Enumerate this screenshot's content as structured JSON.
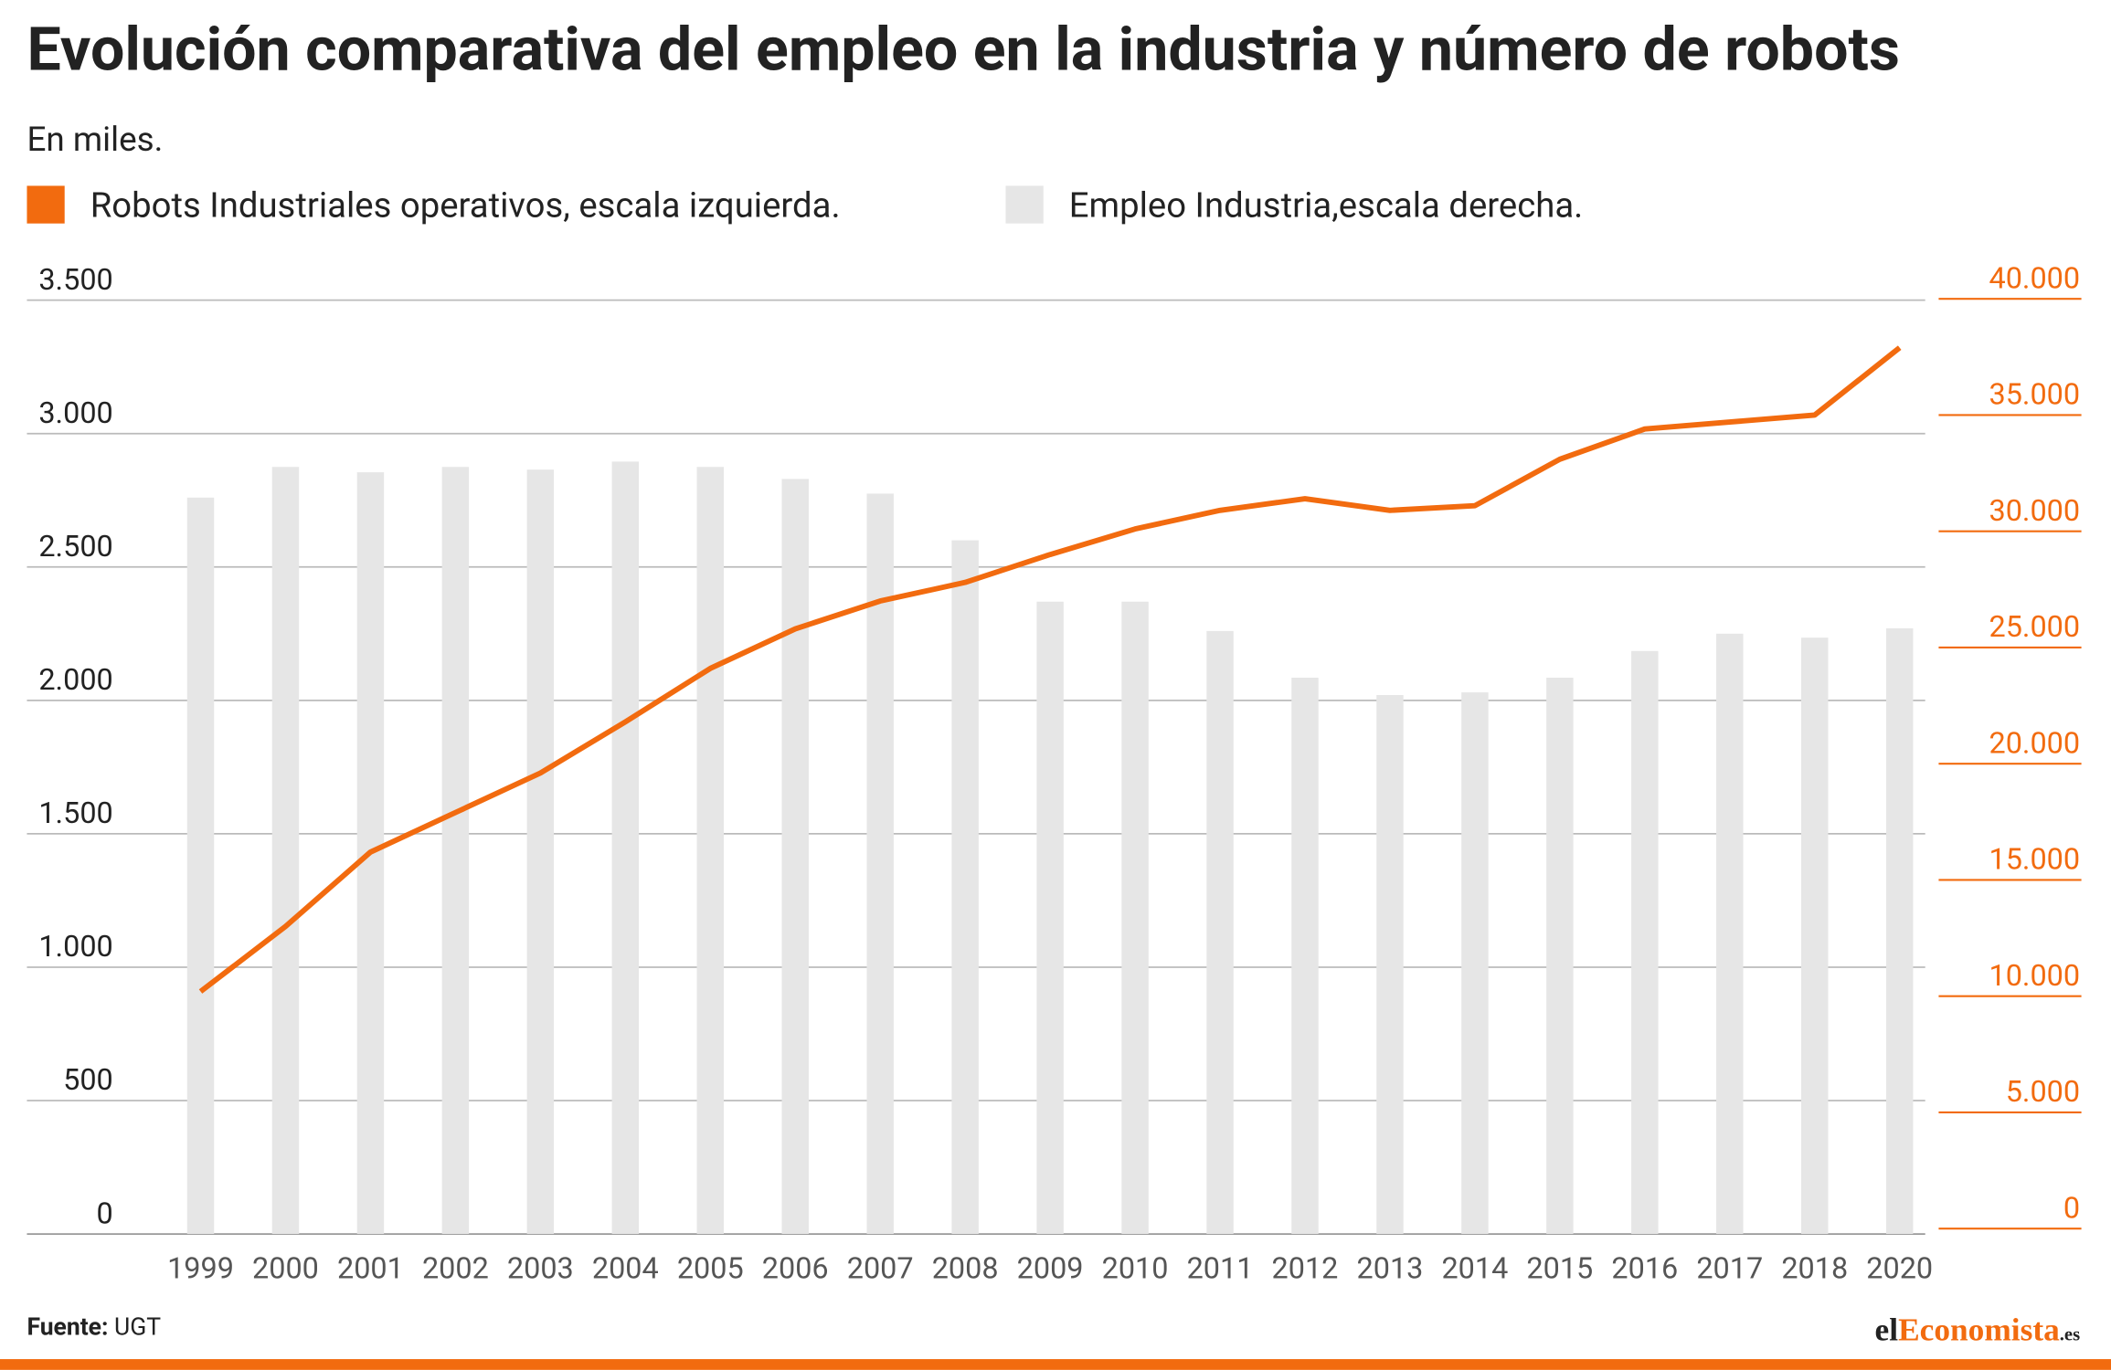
{
  "chart_data": {
    "type": "bar_line",
    "title": "Evolución comparativa del empleo en la industria y número de robots",
    "subtitle": "En miles.",
    "categories": [
      "1999",
      "2000",
      "2001",
      "2002",
      "2003",
      "2004",
      "2005",
      "2006",
      "2007",
      "2008",
      "2009",
      "2010",
      "2011",
      "2012",
      "2013",
      "2014",
      "2015",
      "2016",
      "2017",
      "2018",
      "2020"
    ],
    "series": [
      {
        "name": "Robots Industriales operativos, escala izquierda.",
        "color": "#f26b0f",
        "type": "line",
        "axis": "y2",
        "values": [
          10200,
          13000,
          16200,
          17900,
          19600,
          21800,
          24100,
          25800,
          27000,
          27800,
          29000,
          30100,
          30900,
          31400,
          30900,
          31100,
          33100,
          34400,
          34700,
          35000,
          37900
        ]
      },
      {
        "name": "Empleo Industria,escala derecha.",
        "color": "#e6e6e6",
        "type": "bar",
        "values": [
          2760,
          2875,
          2855,
          2875,
          2865,
          2895,
          2875,
          2830,
          2775,
          2600,
          2370,
          2370,
          2260,
          2085,
          2020,
          2030,
          2085,
          2185,
          2250,
          2235,
          2270
        ]
      }
    ],
    "ylim": [
      0,
      3500
    ],
    "yticks": [
      0,
      500,
      {
        "value": 1000,
        "label": "1.000"
      },
      {
        "value": 1500,
        "label": "1.500"
      },
      {
        "value": 2000,
        "label": "2.000"
      },
      {
        "value": 2500,
        "label": "2.500"
      },
      {
        "value": 3000,
        "label": "3.000"
      },
      {
        "value": 3500,
        "label": "3.500"
      }
    ],
    "y2lim": [
      0,
      40000
    ],
    "y2ticks": [
      0,
      {
        "value": 5000,
        "label": "5.000"
      },
      {
        "value": 10000,
        "label": "10.000"
      },
      {
        "value": 15000,
        "label": "15.000"
      },
      {
        "value": 20000,
        "label": "20.000"
      },
      {
        "value": 25000,
        "label": "25.000"
      },
      {
        "value": 30000,
        "label": "30.000"
      },
      {
        "value": 35000,
        "label": "35.000"
      },
      {
        "value": 40000,
        "label": "40.000"
      }
    ],
    "grid": true,
    "source_label": "Fuente:",
    "source": "UGT",
    "logo": [
      "el",
      "Economista",
      ".es"
    ]
  }
}
